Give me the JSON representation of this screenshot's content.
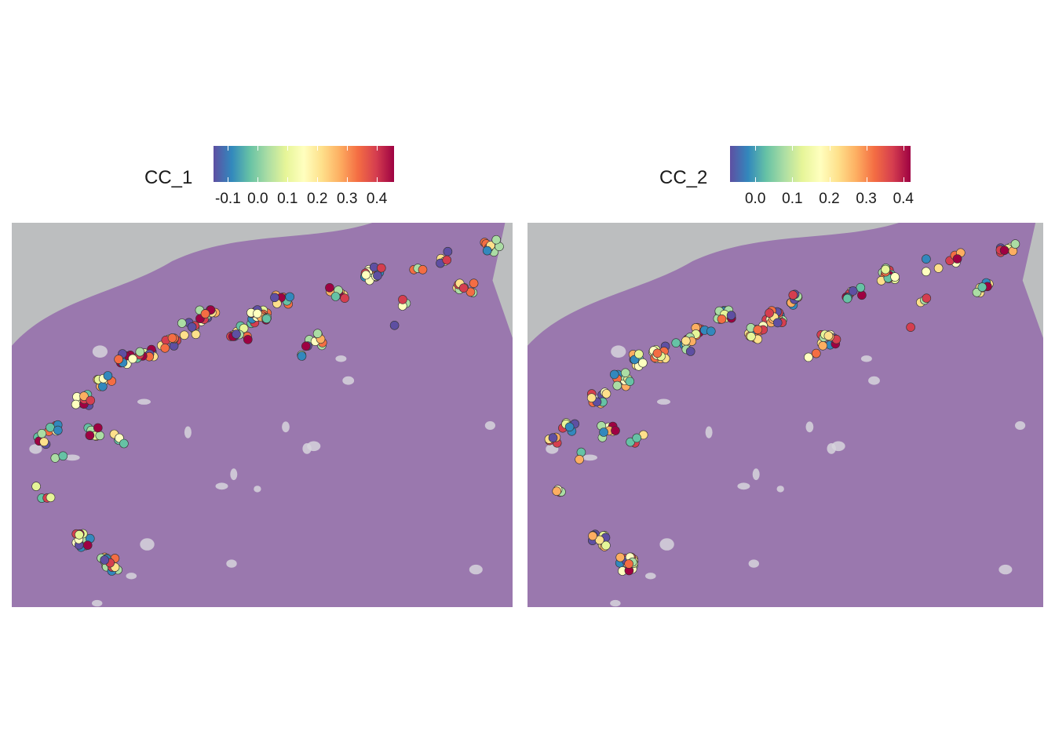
{
  "panels": [
    {
      "legend_title": "CC_1",
      "ticks": [
        "-0.1",
        "0.0",
        "0.1",
        "0.2",
        "0.3",
        "0.4"
      ],
      "tick_fracs": [
        0.08,
        0.245,
        0.41,
        0.575,
        0.74,
        0.905
      ],
      "range": [
        -0.15,
        0.45
      ]
    },
    {
      "legend_title": "CC_2",
      "ticks": [
        "0.0",
        "0.1",
        "0.2",
        "0.3",
        "0.4"
      ],
      "tick_fracs": [
        0.14,
        0.345,
        0.55,
        0.755,
        0.96
      ],
      "range": [
        -0.07,
        0.41
      ]
    }
  ],
  "colors": {
    "background": "#bcbebf",
    "tissue": "#9a78ae",
    "palette": [
      "#5e4fa2",
      "#3288bd",
      "#66c2a5",
      "#abdda4",
      "#e6f598",
      "#ffffbf",
      "#fee08b",
      "#fdae61",
      "#f46d43",
      "#d53e4f",
      "#9e0142"
    ]
  }
}
